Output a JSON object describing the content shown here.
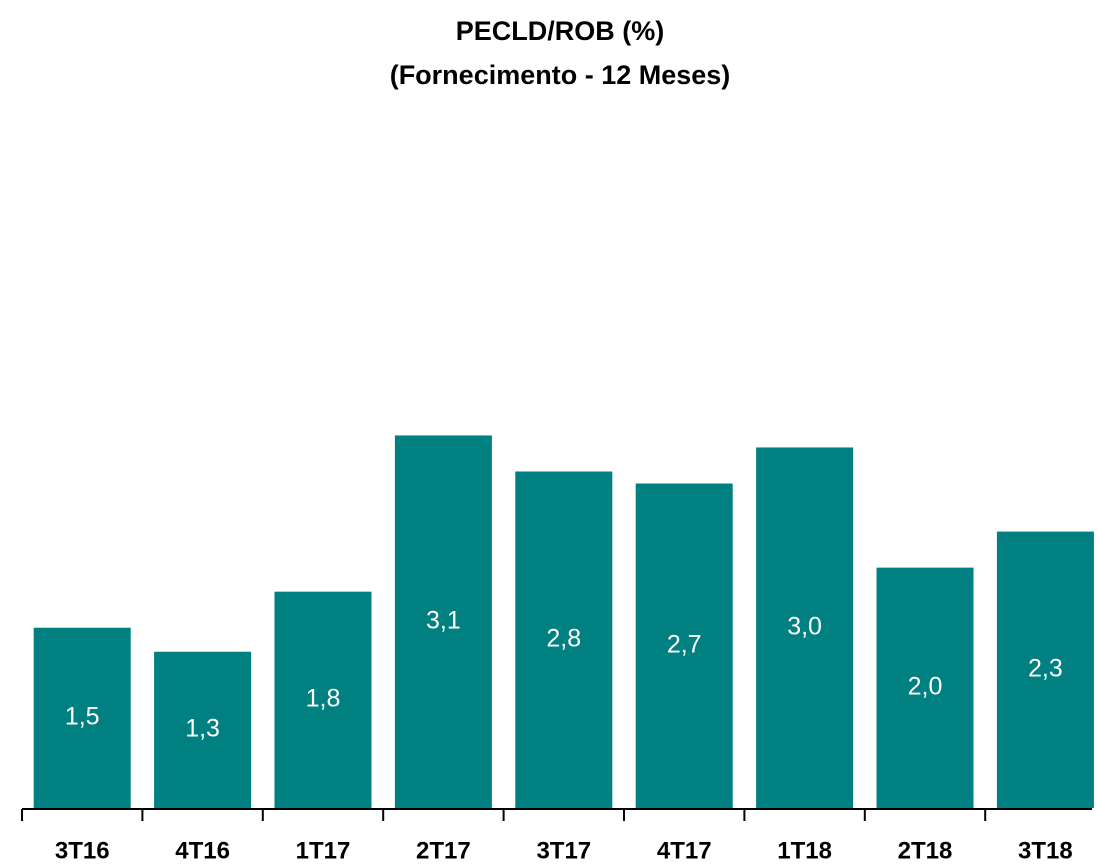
{
  "chart_data": {
    "type": "bar",
    "title": "PECLD/ROB (%)",
    "subtitle": "(Fornecimento - 12 Meses)",
    "categories": [
      "3T16",
      "4T16",
      "1T17",
      "2T17",
      "3T17",
      "4T17",
      "1T18",
      "2T18",
      "3T18"
    ],
    "values": [
      1.5,
      1.3,
      1.8,
      3.1,
      2.8,
      2.7,
      3.0,
      2.0,
      2.3
    ],
    "value_labels": [
      "1,5",
      "1,3",
      "1,8",
      "3,1",
      "2,8",
      "2,7",
      "3,0",
      "2,0",
      "2,3"
    ],
    "color": "#008080",
    "ylim": [
      0,
      5.5
    ],
    "grid": false
  }
}
